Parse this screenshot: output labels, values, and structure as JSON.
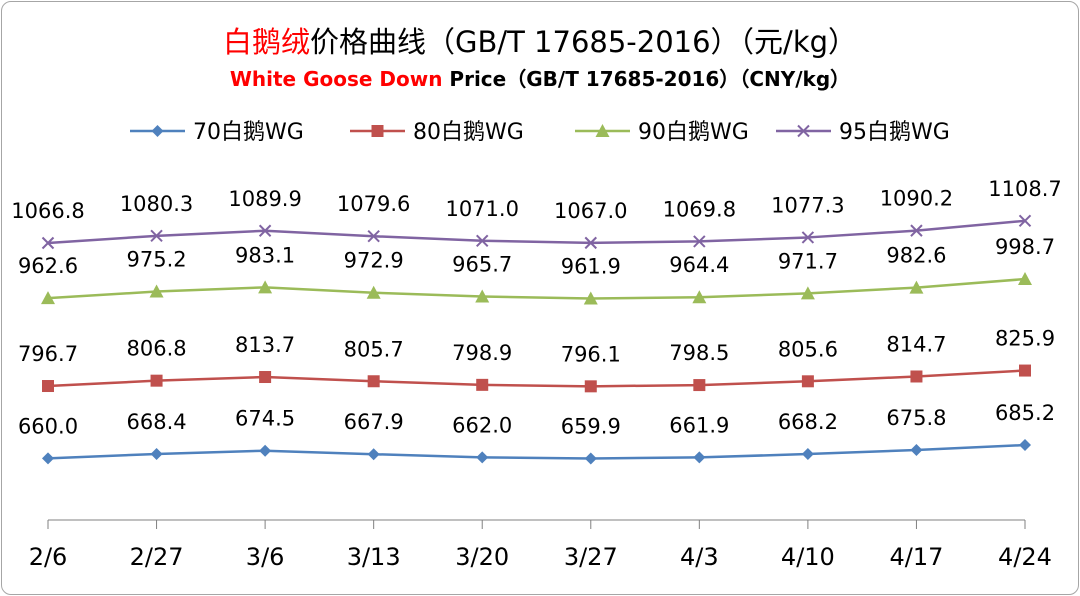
{
  "colors": {
    "title_highlight": "#ff0000",
    "axis": "#808080",
    "text": "#000000"
  },
  "chart_data": {
    "type": "line",
    "title": {
      "highlight": "白鹅绒",
      "rest": "价格曲线（GB/T 17685-2016）（元/kg）"
    },
    "subtitle": {
      "highlight": "White Goose Down",
      "rest": " Price（GB/T 17685-2016）（CNY/kg）"
    },
    "xlabel": "",
    "ylabel": "",
    "legend_position": "top",
    "grid": false,
    "categories": [
      "2/6",
      "2/27",
      "3/6",
      "3/13",
      "3/20",
      "3/27",
      "4/3",
      "4/10",
      "4/17",
      "4/24"
    ],
    "ylim": [
      600,
      1150
    ],
    "series": [
      {
        "name": "70白鹅WG",
        "color": "#4f81bd",
        "marker": "diamond",
        "values": [
          660.0,
          668.4,
          674.5,
          667.9,
          662.0,
          659.9,
          661.9,
          668.2,
          675.8,
          685.2
        ],
        "labels": [
          "660.0",
          "668.4",
          "674.5",
          "667.9",
          "662.0",
          "659.9",
          "661.9",
          "668.2",
          "675.8",
          "685.2"
        ]
      },
      {
        "name": "80白鹅WG",
        "color": "#c0504d",
        "marker": "square",
        "values": [
          796.7,
          806.8,
          813.7,
          805.7,
          798.9,
          796.1,
          798.5,
          805.6,
          814.7,
          825.9
        ],
        "labels": [
          "796.7",
          "806.8",
          "813.7",
          "805.7",
          "798.9",
          "796.1",
          "798.5",
          "805.6",
          "814.7",
          "825.9"
        ]
      },
      {
        "name": "90白鹅WG",
        "color": "#9bbb59",
        "marker": "triangle",
        "values": [
          962.6,
          975.2,
          983.1,
          972.9,
          965.7,
          961.9,
          964.4,
          971.7,
          982.6,
          998.7
        ],
        "labels": [
          "962.6",
          "975.2",
          "983.1",
          "972.9",
          "965.7",
          "961.9",
          "964.4",
          "971.7",
          "982.6",
          "998.7"
        ]
      },
      {
        "name": "95白鹅WG",
        "color": "#8064a2",
        "marker": "x",
        "values": [
          1066.8,
          1080.3,
          1089.9,
          1079.6,
          1071.0,
          1067.0,
          1069.8,
          1077.3,
          1090.2,
          1108.7
        ],
        "labels": [
          "1066.8",
          "1080.3",
          "1089.9",
          "1079.6",
          "1071.0",
          "1067.0",
          "1069.8",
          "1077.3",
          "1090.2",
          "1108.7"
        ]
      }
    ]
  }
}
